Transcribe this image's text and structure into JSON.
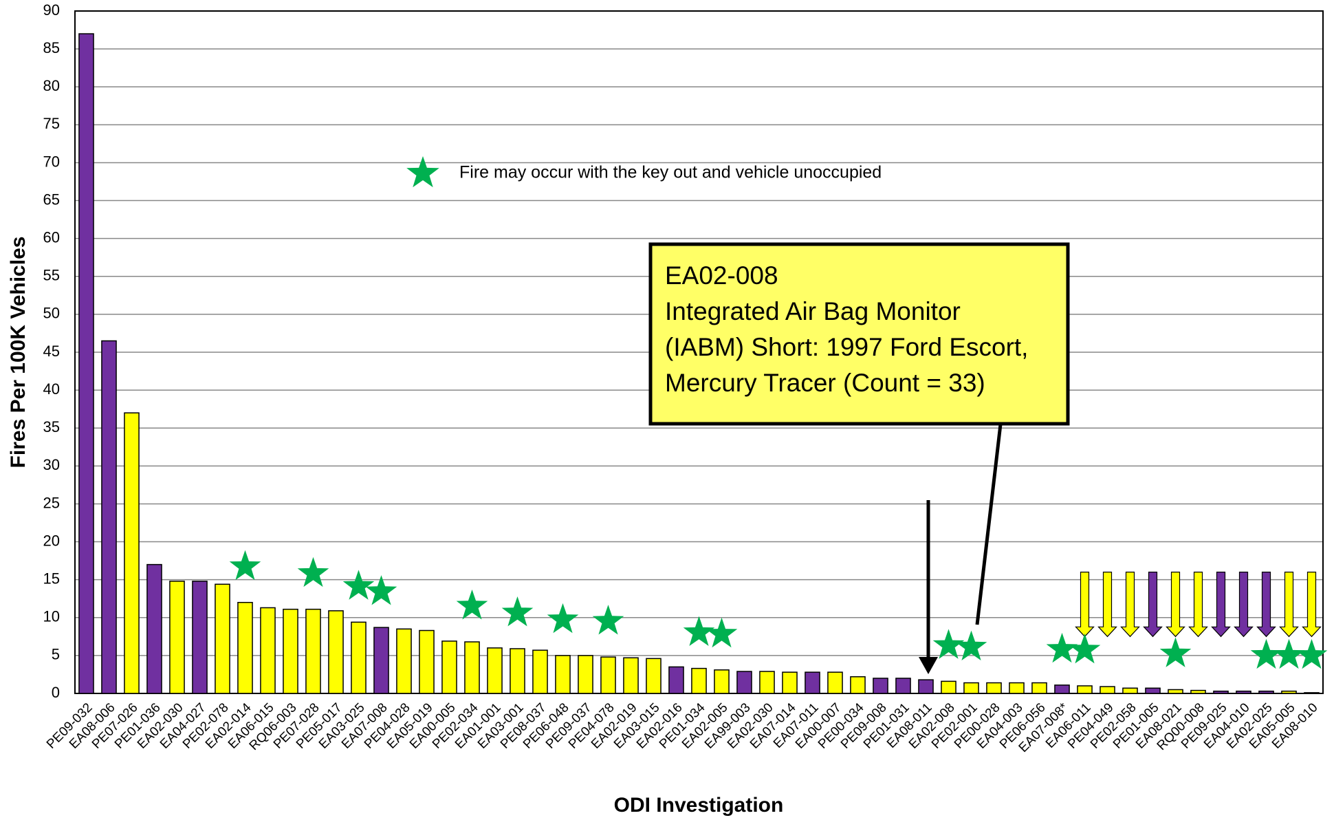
{
  "chart_data": {
    "type": "bar",
    "y_label": "Fires Per 100K Vehicles",
    "x_label": "ODI Investigation",
    "legend_note": "Fire may occur with the key out and vehicle unoccupied",
    "callout": [
      "EA02-008",
      "Integrated Air Bag Monitor",
      "(IABM) Short: 1997 Ford Escort,",
      "Mercury Tracer (Count =  33)"
    ],
    "categories": [
      "PE09-032",
      "EA08-006",
      "PE07-026",
      "PE01-036",
      "EA02-030",
      "EA04-027",
      "PE02-078",
      "EA02-014",
      "EA06-015",
      "RQ06-003",
      "PE07-028",
      "PE05-017",
      "EA03-025",
      "EA07-008",
      "PE04-028",
      "EA05-019",
      "EA00-005",
      "PE02-034",
      "EA01-001",
      "EA03-001",
      "PE08-037",
      "PE06-048",
      "PE09-037",
      "PE04-078",
      "EA02-019",
      "EA03-015",
      "EA02-016",
      "PE01-034",
      "EA02-005",
      "EA99-003",
      "EA02-030",
      "EA07-014",
      "EA07-011",
      "EA00-007",
      "PE00-034",
      "PE09-008",
      "PE01-031",
      "EA08-011",
      "EA02-008",
      "PE02-001",
      "PE00-028",
      "EA04-003",
      "PE06-056",
      "EA07-008*",
      "EA06-011",
      "PE04-049",
      "PE02-058",
      "PE01-005",
      "EA08-021",
      "RQ00-008",
      "PE09-025",
      "EA04-010",
      "EA02-025",
      "EA05-005",
      "EA08-010"
    ],
    "values": [
      87,
      46.5,
      37,
      17,
      14.8,
      14.8,
      14.4,
      12,
      11.3,
      11.1,
      11.1,
      10.9,
      9.4,
      8.7,
      8.5,
      8.3,
      6.9,
      6.8,
      6.0,
      5.9,
      5.7,
      5.0,
      5.0,
      4.8,
      4.7,
      4.6,
      3.5,
      3.3,
      3.1,
      2.9,
      2.9,
      2.8,
      2.8,
      2.8,
      2.2,
      2.0,
      2.0,
      1.8,
      1.6,
      1.4,
      1.4,
      1.4,
      1.4,
      1.1,
      1.0,
      0.9,
      0.7,
      0.7,
      0.5,
      0.4,
      0.3,
      0.3,
      0.3,
      0.3,
      0.1
    ],
    "colors": [
      "#7030a0",
      "#7030a0",
      "#ffff00",
      "#7030a0",
      "#ffff00",
      "#7030a0",
      "#ffff00",
      "#ffff00",
      "#ffff00",
      "#ffff00",
      "#ffff00",
      "#ffff00",
      "#ffff00",
      "#7030a0",
      "#ffff00",
      "#ffff00",
      "#ffff00",
      "#ffff00",
      "#ffff00",
      "#ffff00",
      "#ffff00",
      "#ffff00",
      "#ffff00",
      "#ffff00",
      "#ffff00",
      "#ffff00",
      "#7030a0",
      "#ffff00",
      "#ffff00",
      "#7030a0",
      "#ffff00",
      "#ffff00",
      "#7030a0",
      "#ffff00",
      "#ffff00",
      "#7030a0",
      "#7030a0",
      "#7030a0",
      "#ffff00",
      "#ffff00",
      "#ffff00",
      "#ffff00",
      "#ffff00",
      "#7030a0",
      "#ffff00",
      "#ffff00",
      "#ffff00",
      "#7030a0",
      "#ffff00",
      "#ffff00",
      "#7030a0",
      "#7030a0",
      "#7030a0",
      "#ffff00",
      "#ffff00"
    ],
    "key_out_unoccupied": [
      false,
      false,
      false,
      false,
      false,
      false,
      false,
      true,
      false,
      false,
      true,
      false,
      true,
      true,
      false,
      false,
      false,
      true,
      false,
      true,
      false,
      true,
      false,
      true,
      false,
      false,
      false,
      true,
      true,
      false,
      false,
      false,
      false,
      false,
      false,
      false,
      false,
      false,
      true,
      true,
      false,
      false,
      false,
      true,
      true,
      false,
      false,
      false,
      true,
      false,
      false,
      false,
      true,
      true,
      true
    ],
    "down_arrow": [
      false,
      false,
      false,
      false,
      false,
      false,
      false,
      false,
      false,
      false,
      false,
      false,
      false,
      false,
      false,
      false,
      false,
      false,
      false,
      false,
      false,
      false,
      false,
      false,
      false,
      false,
      false,
      false,
      false,
      false,
      false,
      false,
      false,
      false,
      false,
      false,
      false,
      false,
      false,
      false,
      false,
      false,
      false,
      false,
      true,
      true,
      true,
      true,
      true,
      true,
      true,
      true,
      true,
      true,
      true
    ],
    "star_color": "#00b050",
    "ylim": [
      0,
      90
    ],
    "yticks": [
      0,
      5,
      10,
      15,
      20,
      25,
      30,
      35,
      40,
      45,
      50,
      55,
      60,
      65,
      70,
      75,
      80,
      85,
      90
    ],
    "grid": true
  }
}
